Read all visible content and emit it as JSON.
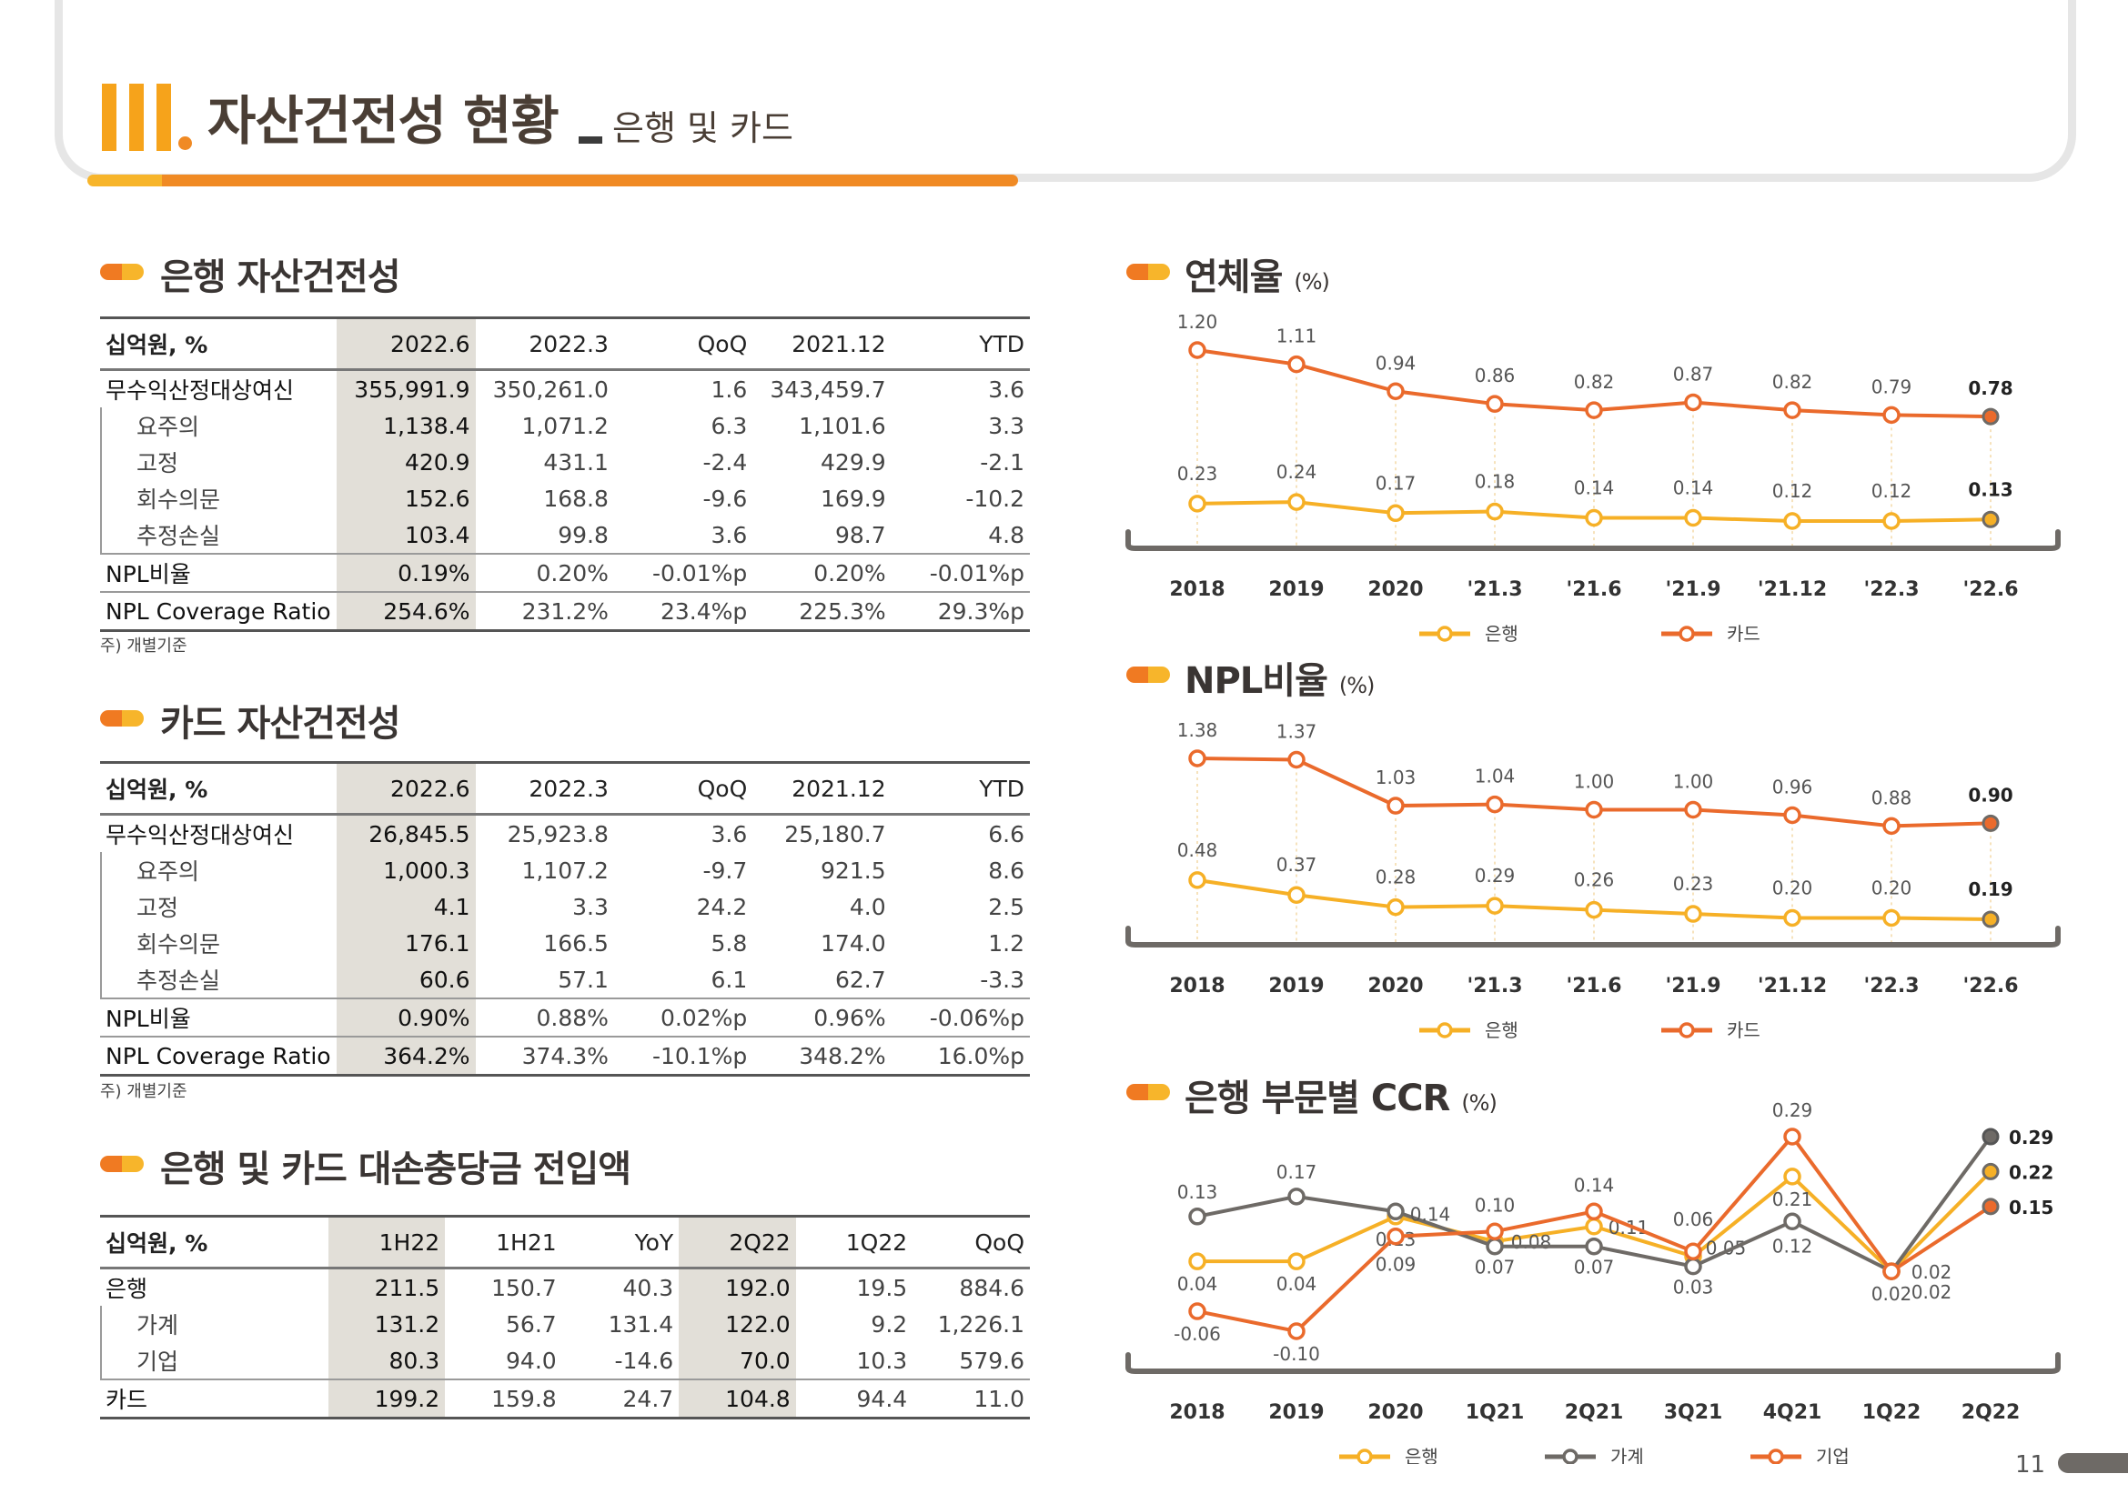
{
  "header": {
    "roman": "III",
    "title": "자산건전성 현황",
    "subtitle": "은행 및 카드"
  },
  "bank_table": {
    "title": "은행 자산건전성",
    "columns": [
      "십억원, %",
      "2022.6",
      "2022.3",
      "QoQ",
      "2021.12",
      "YTD"
    ],
    "rows": [
      {
        "label": "무수익산정대상여신",
        "cells": [
          "355,991.9",
          "350,261.0",
          "1.6",
          "343,459.7",
          "3.6"
        ]
      },
      {
        "label": "요주의",
        "cells": [
          "1,138.4",
          "1,071.2",
          "6.3",
          "1,101.6",
          "3.3"
        ]
      },
      {
        "label": "고정",
        "cells": [
          "420.9",
          "431.1",
          "-2.4",
          "429.9",
          "-2.1"
        ]
      },
      {
        "label": "회수의문",
        "cells": [
          "152.6",
          "168.8",
          "-9.6",
          "169.9",
          "-10.2"
        ]
      },
      {
        "label": "추정손실",
        "cells": [
          "103.4",
          "99.8",
          "3.6",
          "98.7",
          "4.8"
        ]
      },
      {
        "label": "NPL비율",
        "cells": [
          "0.19%",
          "0.20%",
          "-0.01%p",
          "0.20%",
          "-0.01%p"
        ]
      },
      {
        "label": "NPL Coverage Ratio",
        "cells": [
          "254.6%",
          "231.2%",
          "23.4%p",
          "225.3%",
          "29.3%p"
        ]
      }
    ],
    "note": "주) 개별기준"
  },
  "card_table": {
    "title": "카드 자산건전성",
    "columns": [
      "십억원, %",
      "2022.6",
      "2022.3",
      "QoQ",
      "2021.12",
      "YTD"
    ],
    "rows": [
      {
        "label": "무수익산정대상여신",
        "cells": [
          "26,845.5",
          "25,923.8",
          "3.6",
          "25,180.7",
          "6.6"
        ]
      },
      {
        "label": "요주의",
        "cells": [
          "1,000.3",
          "1,107.2",
          "-9.7",
          "921.5",
          "8.6"
        ]
      },
      {
        "label": "고정",
        "cells": [
          "4.1",
          "3.3",
          "24.2",
          "4.0",
          "2.5"
        ]
      },
      {
        "label": "회수의문",
        "cells": [
          "176.1",
          "166.5",
          "5.8",
          "174.0",
          "1.2"
        ]
      },
      {
        "label": "추정손실",
        "cells": [
          "60.6",
          "57.1",
          "6.1",
          "62.7",
          "-3.3"
        ]
      },
      {
        "label": "NPL비율",
        "cells": [
          "0.90%",
          "0.88%",
          "0.02%p",
          "0.96%",
          "-0.06%p"
        ]
      },
      {
        "label": "NPL Coverage Ratio",
        "cells": [
          "364.2%",
          "374.3%",
          "-10.1%p",
          "348.2%",
          "16.0%p"
        ]
      }
    ],
    "note": "주) 개별기준"
  },
  "provision_table": {
    "title": "은행 및 카드 대손충당금 전입액",
    "columns": [
      "십억원, %",
      "1H22",
      "1H21",
      "YoY",
      "2Q22",
      "1Q22",
      "QoQ"
    ],
    "rows": [
      {
        "label": "은행",
        "cells": [
          "211.5",
          "150.7",
          "40.3",
          "192.0",
          "19.5",
          "884.6"
        ]
      },
      {
        "label": "가계",
        "cells": [
          "131.2",
          "56.7",
          "131.4",
          "122.0",
          "9.2",
          "1,226.1"
        ]
      },
      {
        "label": "기업",
        "cells": [
          "80.3",
          "94.0",
          "-14.6",
          "70.0",
          "10.3",
          "579.6"
        ]
      },
      {
        "label": "카드",
        "cells": [
          "199.2",
          "159.8",
          "24.7",
          "104.8",
          "94.4",
          "11.0"
        ]
      }
    ]
  },
  "chart_titles": {
    "delinquency": {
      "title": "연체율",
      "unit": "(%)"
    },
    "npl": {
      "title": "NPL비율",
      "unit": "(%)"
    },
    "ccr": {
      "title": "은행 부문별 CCR",
      "unit": "(%)"
    }
  },
  "page_number": "11",
  "chart_data": [
    {
      "type": "line",
      "title": "연체율",
      "x": [
        "2018",
        "2019",
        "2020",
        "'21.3",
        "'21.6",
        "'21.9",
        "'21.12",
        "'22.3",
        "'22.6"
      ],
      "series": [
        {
          "name": "은행",
          "color": "#f6b026",
          "values": [
            0.23,
            0.24,
            0.17,
            0.18,
            0.14,
            0.14,
            0.12,
            0.12,
            0.13
          ]
        },
        {
          "name": "카드",
          "color": "#ea6a2c",
          "values": [
            1.2,
            1.11,
            0.94,
            0.86,
            0.82,
            0.87,
            0.82,
            0.79,
            0.78
          ]
        }
      ],
      "legend": "bottom",
      "grid": false
    },
    {
      "type": "line",
      "title": "NPL비율",
      "x": [
        "2018",
        "2019",
        "2020",
        "'21.3",
        "'21.6",
        "'21.9",
        "'21.12",
        "'22.3",
        "'22.6"
      ],
      "series": [
        {
          "name": "은행",
          "color": "#f6b026",
          "values": [
            0.48,
            0.37,
            0.28,
            0.29,
            0.26,
            0.23,
            0.2,
            0.2,
            0.19
          ]
        },
        {
          "name": "카드",
          "color": "#ea6a2c",
          "values": [
            1.38,
            1.37,
            1.03,
            1.04,
            1.0,
            1.0,
            0.96,
            0.88,
            0.9
          ]
        }
      ],
      "legend": "bottom",
      "grid": false
    },
    {
      "type": "line",
      "title": "은행 부문별 CCR",
      "x": [
        "2018",
        "2019",
        "2020",
        "1Q21",
        "2Q21",
        "3Q21",
        "4Q21",
        "1Q22",
        "2Q22"
      ],
      "series": [
        {
          "name": "은행",
          "color": "#f6b026",
          "values": [
            0.04,
            0.04,
            0.13,
            0.08,
            0.11,
            0.05,
            0.21,
            0.02,
            0.22
          ]
        },
        {
          "name": "가계",
          "color": "#6e6a66",
          "values": [
            0.13,
            0.17,
            0.14,
            0.07,
            0.07,
            0.03,
            0.12,
            0.02,
            0.29
          ]
        },
        {
          "name": "기업",
          "color": "#ea6a2c",
          "values": [
            -0.06,
            -0.1,
            0.09,
            0.1,
            0.14,
            0.06,
            0.29,
            0.02,
            0.15
          ]
        }
      ],
      "legend": "bottom",
      "grid": false
    }
  ]
}
